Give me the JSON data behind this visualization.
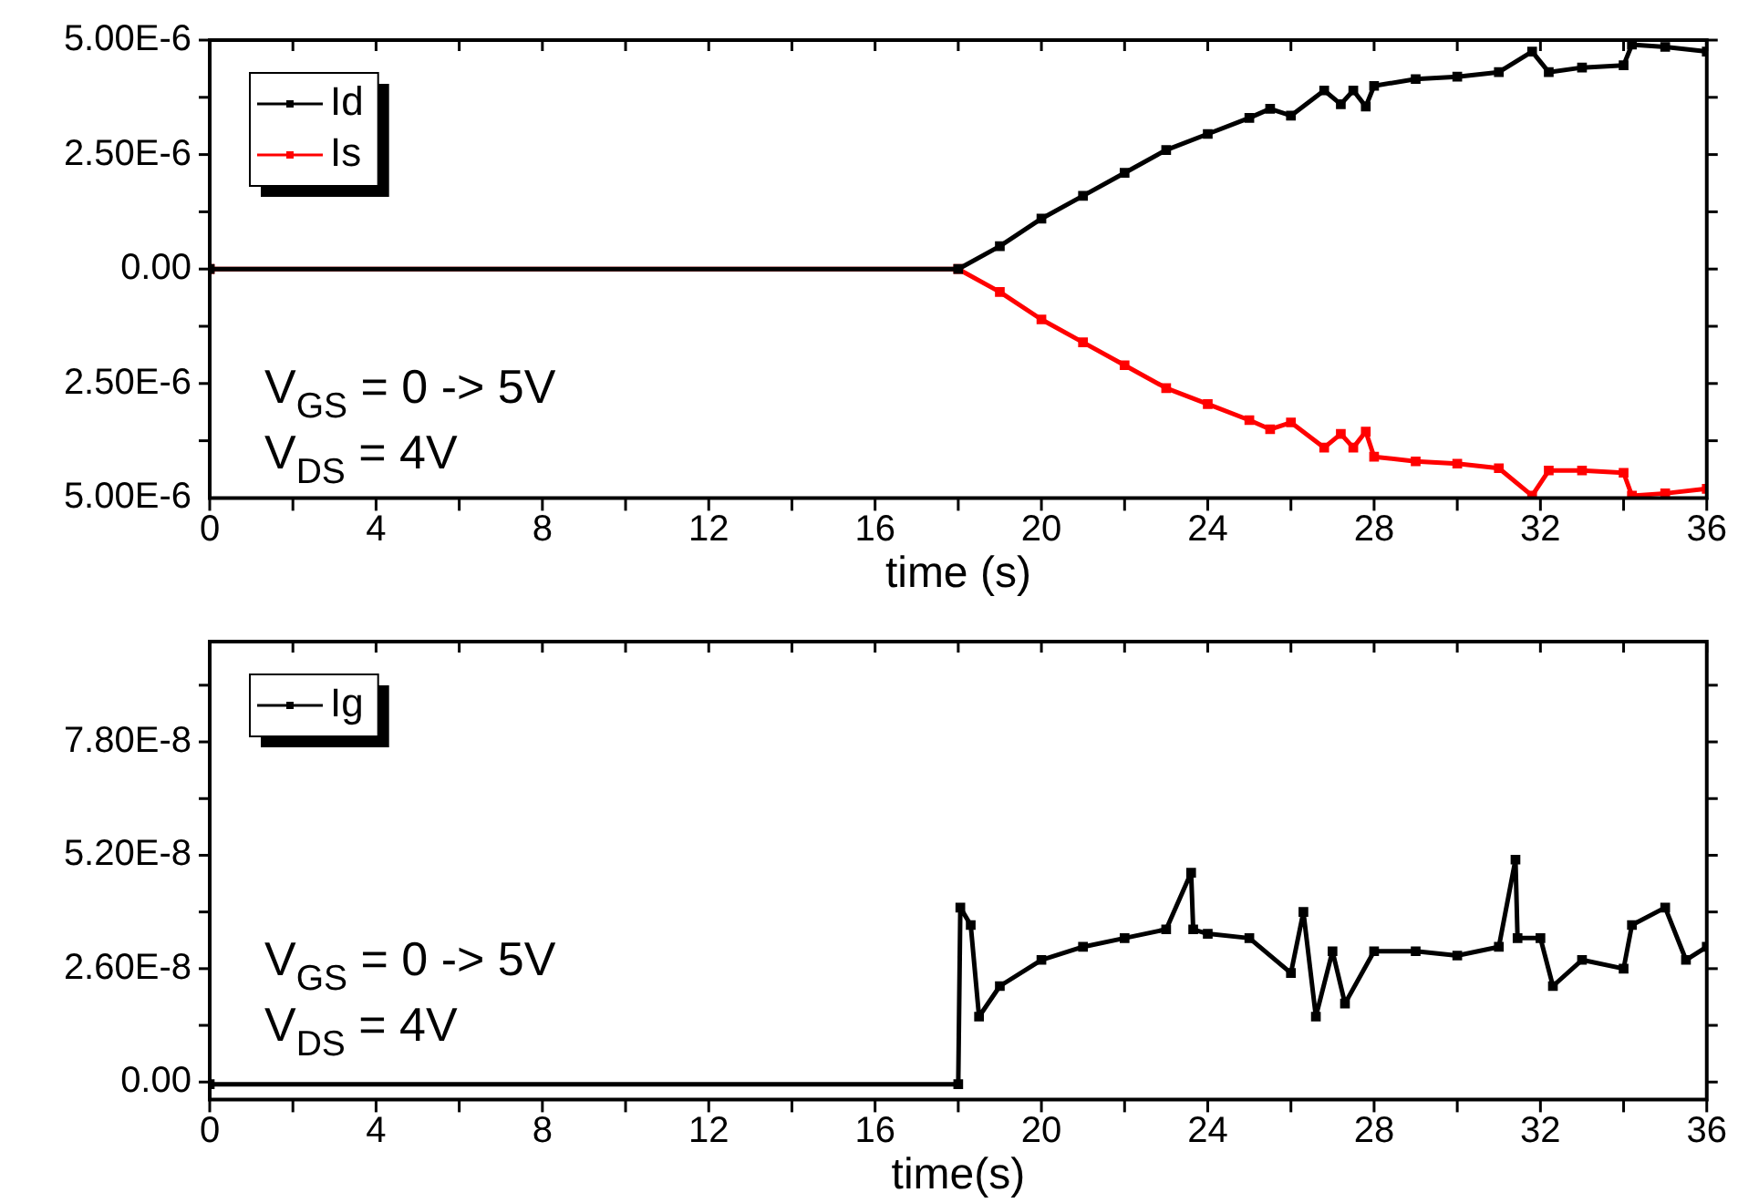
{
  "chart_data": [
    {
      "type": "line",
      "xlabel": "time (s)",
      "x": [
        0,
        18,
        19,
        20,
        21,
        22,
        23,
        24,
        25,
        25.5,
        26,
        26.8,
        27.2,
        27.5,
        27.8,
        28,
        29,
        30,
        31,
        31.8,
        32.2,
        33,
        34,
        34.2,
        35,
        36
      ],
      "series": [
        {
          "name": "Id",
          "color": "#000000",
          "values": [
            0,
            0,
            5e-07,
            1.1e-06,
            1.6e-06,
            2.1e-06,
            2.6e-06,
            2.95e-06,
            3.3e-06,
            3.5e-06,
            3.35e-06,
            3.9e-06,
            3.6e-06,
            3.9e-06,
            3.55e-06,
            4e-06,
            4.15e-06,
            4.2e-06,
            4.3e-06,
            4.75e-06,
            4.3e-06,
            4.4e-06,
            4.45e-06,
            4.9e-06,
            4.85e-06,
            4.75e-06
          ]
        },
        {
          "name": "Is",
          "color": "#ff0000",
          "values": [
            0,
            0,
            -5e-07,
            -1.1e-06,
            -1.6e-06,
            -2.1e-06,
            -2.6e-06,
            -2.95e-06,
            -3.3e-06,
            -3.5e-06,
            -3.35e-06,
            -3.9e-06,
            -3.6e-06,
            -3.9e-06,
            -3.55e-06,
            -4.1e-06,
            -4.2e-06,
            -4.25e-06,
            -4.35e-06,
            -4.95e-06,
            -4.4e-06,
            -4.4e-06,
            -4.45e-06,
            -4.95e-06,
            -4.9e-06,
            -4.8e-06
          ]
        }
      ],
      "xlim": [
        0,
        36
      ],
      "xticks": [
        0,
        4,
        8,
        12,
        16,
        20,
        24,
        28,
        32,
        36
      ],
      "ylim": [
        -5e-06,
        5e-06
      ],
      "yticks": [
        {
          "value": -5e-06,
          "label": "5.00E-6"
        },
        {
          "value": -2.5e-06,
          "label": "2.50E-6"
        },
        {
          "value": 0,
          "label": "0.00"
        },
        {
          "value": 2.5e-06,
          "label": "2.50E-6"
        },
        {
          "value": 5e-06,
          "label": "5.00E-6"
        }
      ],
      "annotations": [
        "V$_{GS}$ = 0 -> 5V",
        "V$_{DS}$ = 4V"
      ],
      "legend": "top left",
      "grid": false,
      "marker": "square",
      "line_style": "solid"
    },
    {
      "type": "line",
      "xlabel": "time(s)",
      "x": [
        0,
        18,
        18.05,
        18.3,
        18.5,
        19,
        20,
        21,
        22,
        23,
        23.6,
        23.65,
        24,
        25,
        26,
        26.3,
        26.6,
        27,
        27.3,
        28,
        29,
        30,
        31,
        31.4,
        31.45,
        32,
        32.3,
        33,
        34,
        34.2,
        35,
        35.5,
        36
      ],
      "series": [
        {
          "name": "Ig",
          "color": "#000000",
          "values": [
            -5e-10,
            -5e-10,
            4e-08,
            3.6e-08,
            1.5e-08,
            2.2e-08,
            2.8e-08,
            3.1e-08,
            3.3e-08,
            3.5e-08,
            4.8e-08,
            3.5e-08,
            3.4e-08,
            3.3e-08,
            2.5e-08,
            3.9e-08,
            1.5e-08,
            3e-08,
            1.8e-08,
            3e-08,
            3e-08,
            2.9e-08,
            3.1e-08,
            5.1e-08,
            3.3e-08,
            3.3e-08,
            2.2e-08,
            2.8e-08,
            2.6e-08,
            3.6e-08,
            4e-08,
            2.8e-08,
            3.1e-08
          ]
        }
      ],
      "xlim": [
        0,
        36
      ],
      "xticks": [
        0,
        4,
        8,
        12,
        16,
        20,
        24,
        28,
        32,
        36
      ],
      "ylim": [
        -4e-09,
        1.01e-07
      ],
      "yticks": [
        {
          "value": 0,
          "label": "0.00"
        },
        {
          "value": 2.6e-08,
          "label": "2.60E-8"
        },
        {
          "value": 5.2e-08,
          "label": "5.20E-8"
        },
        {
          "value": 7.8e-08,
          "label": "7.80E-8"
        }
      ],
      "annotations": [
        "V$_{GS}$ = 0 -> 5V",
        "V$_{DS}$ = 4V"
      ],
      "legend": "top left",
      "grid": false,
      "marker": "square",
      "line_style": "solid"
    }
  ]
}
